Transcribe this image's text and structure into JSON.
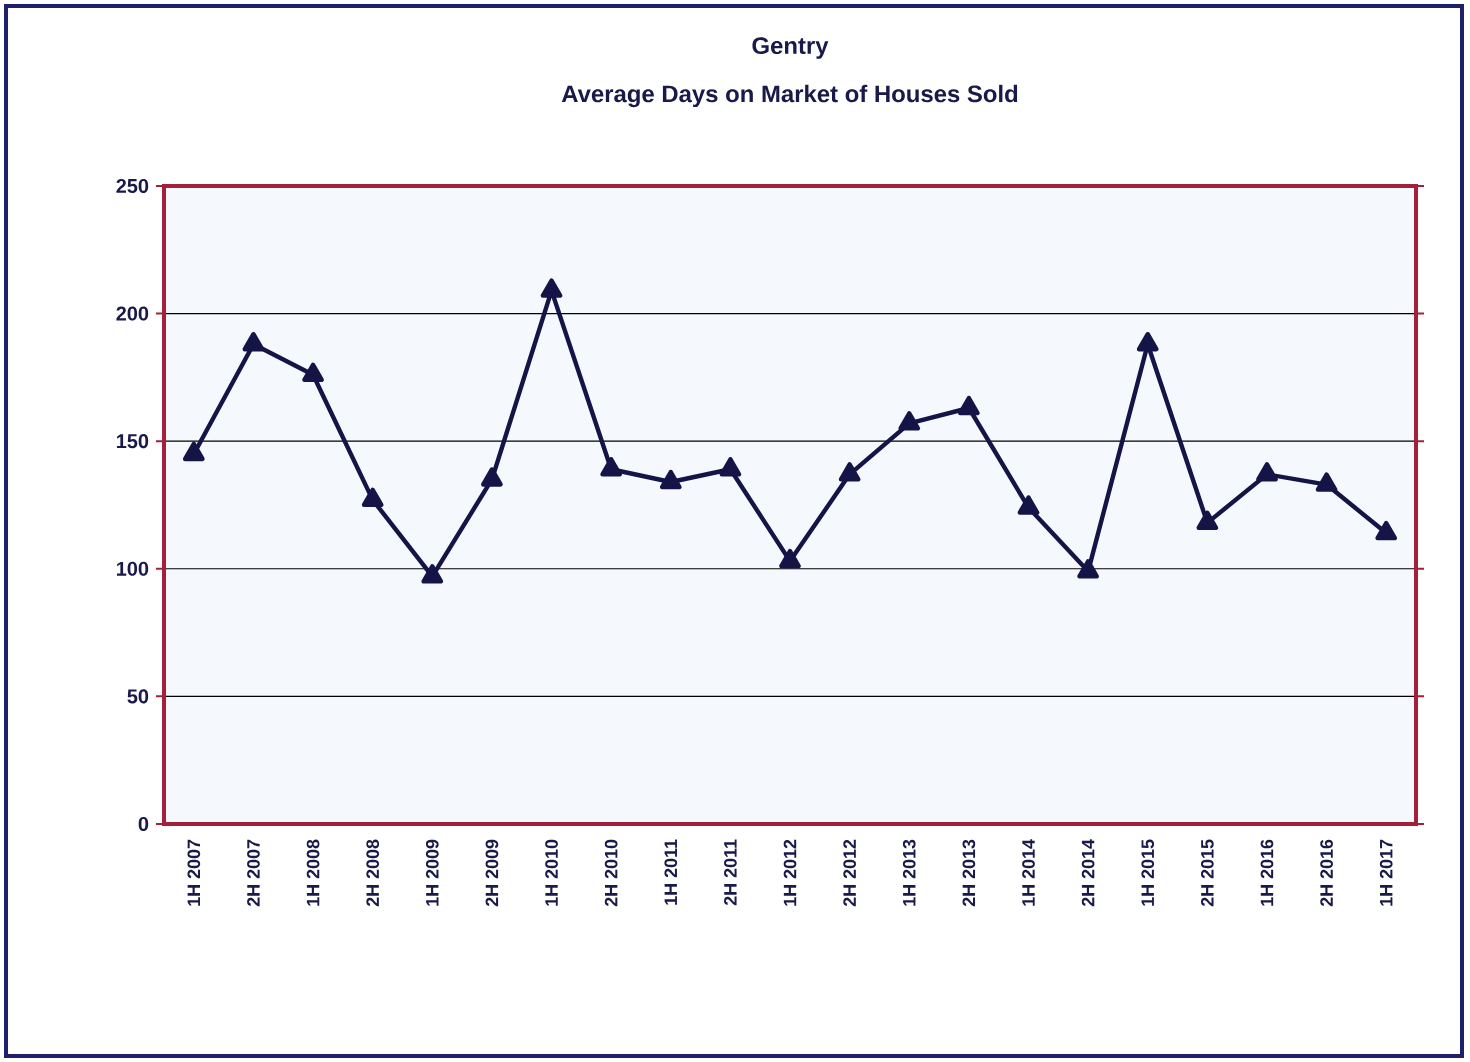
{
  "chart_data": {
    "type": "line",
    "title": "Gentry",
    "subtitle": "Average Days on Market of Houses Sold",
    "categories": [
      "1H 2007",
      "2H 2007",
      "1H 2008",
      "2H 2008",
      "1H 2009",
      "2H 2009",
      "1H 2010",
      "2H 2010",
      "1H 2011",
      "2H 2011",
      "1H 2012",
      "2H 2012",
      "1H 2013",
      "2H 2013",
      "1H 2014",
      "2H 2014",
      "1H 2015",
      "2H 2015",
      "1H 2016",
      "2H 2016",
      "1H 2017"
    ],
    "series": [
      {
        "color": "#141446",
        "values": [
          145,
          188,
          176,
          127,
          97,
          135,
          209,
          139,
          134,
          139,
          103,
          137,
          157,
          163,
          124,
          99,
          188,
          118,
          137,
          133,
          114
        ]
      }
    ],
    "ylim": [
      0,
      250
    ],
    "yticks": [
      0,
      50,
      100,
      150,
      200,
      250
    ],
    "grid": "y",
    "marker": "triangle",
    "line_style": "solid"
  }
}
